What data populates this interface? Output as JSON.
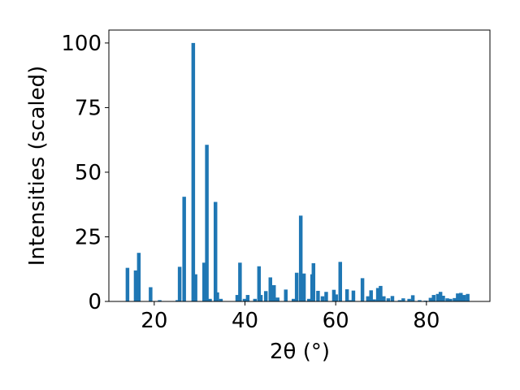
{
  "chart_data": {
    "type": "bar",
    "xlabel": "2θ (°)",
    "ylabel": "Intensities (scaled)",
    "xlim": [
      10.0,
      94.0
    ],
    "ylim": [
      0,
      105
    ],
    "xticks": [
      20,
      40,
      60,
      80
    ],
    "yticks": [
      0,
      25,
      50,
      75,
      100
    ],
    "bar_width": 0.8,
    "bar_color": "#1f77b4",
    "grid": false,
    "legend": "none",
    "x": [
      14.1,
      15.9,
      16.6,
      19.2,
      21.2,
      25.1,
      25.6,
      26.6,
      28.6,
      29.1,
      31.0,
      31.6,
      32.3,
      33.5,
      33.9,
      34.7,
      38.3,
      38.9,
      39.9,
      40.6,
      42.2,
      43.1,
      43.5,
      44.6,
      45.6,
      46.4,
      47.2,
      49.0,
      50.7,
      51.4,
      52.3,
      53.0,
      54.1,
      54.8,
      55.1,
      56.1,
      57.1,
      57.9,
      59.6,
      60.1,
      61.0,
      62.5,
      63.2,
      63.9,
      65.9,
      67.1,
      67.8,
      68.5,
      69.3,
      69.9,
      70.6,
      71.6,
      72.5,
      74.1,
      74.9,
      76.2,
      77.0,
      78.5,
      79.8,
      80.9,
      81.6,
      82.5,
      83.1,
      83.7,
      84.6,
      85.3,
      86.2,
      86.9,
      87.6,
      88.3,
      89.1
    ],
    "values": [
      13.0,
      12.0,
      18.8,
      5.5,
      0.5,
      0.5,
      13.4,
      40.5,
      100.0,
      10.5,
      15.0,
      60.6,
      1.0,
      38.5,
      3.5,
      1.0,
      2.5,
      15.0,
      1.0,
      2.5,
      1.0,
      13.6,
      2.5,
      4.0,
      9.3,
      6.3,
      1.5,
      4.6,
      1.0,
      11.1,
      33.2,
      10.8,
      1.0,
      10.5,
      14.8,
      4.1,
      2.0,
      3.7,
      4.5,
      2.7,
      15.3,
      4.7,
      0.5,
      4.2,
      9.0,
      2.0,
      4.3,
      0.8,
      5.2,
      6.0,
      2.0,
      1.2,
      2.1,
      0.5,
      1.2,
      1.0,
      2.4,
      0.5,
      0.3,
      1.4,
      2.5,
      2.9,
      3.7,
      2.2,
      1.2,
      1.0,
      1.3,
      3.1,
      3.3,
      2.5,
      2.9
    ]
  }
}
